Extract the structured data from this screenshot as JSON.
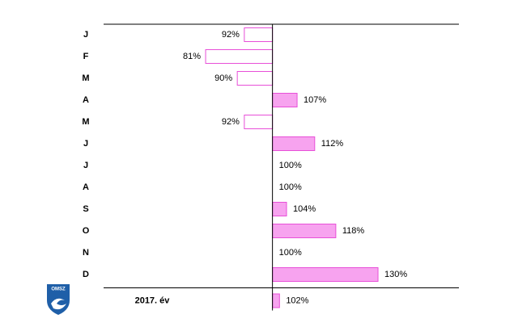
{
  "chart_data": {
    "type": "bar",
    "orientation": "horizontal",
    "categories": [
      "J",
      "F",
      "M",
      "A",
      "M",
      "J",
      "J",
      "A",
      "S",
      "O",
      "N",
      "D"
    ],
    "values": [
      92,
      81,
      90,
      107,
      92,
      112,
      100,
      100,
      104,
      118,
      100,
      130
    ],
    "value_labels": [
      "92%",
      "81%",
      "90%",
      "107%",
      "92%",
      "112%",
      "100%",
      "100%",
      "104%",
      "118%",
      "100%",
      "130%"
    ],
    "baseline": 100,
    "xlim": [
      52,
      153
    ],
    "color": "#f7a3ef",
    "edge_color": "#e84fd8",
    "below_color": "#ffffff",
    "total": {
      "label": "2017. év",
      "value": 102,
      "value_label": "102%"
    },
    "logo": "OMSZ"
  }
}
